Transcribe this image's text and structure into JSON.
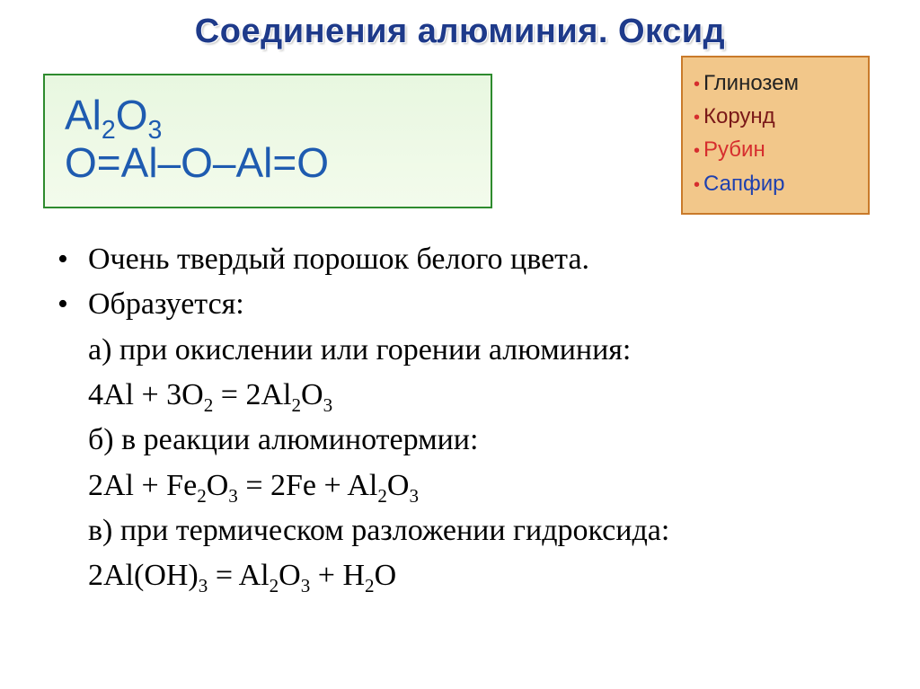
{
  "title": "Соединения алюминия. Оксид",
  "formula": {
    "line1_html": "Al<sub>2</sub>O<sub>3</sub>",
    "line2": "O=Al–O–Al=O",
    "box_bg_top": "#e8f7e0",
    "box_bg_bottom": "#f3fbec",
    "box_border": "#2e8b2e",
    "text_color": "#1e5bb0",
    "fontsize": 46
  },
  "minerals": {
    "box_bg": "#f2c78a",
    "box_border": "#c97a2a",
    "bullet_color": "#d62e2e",
    "fontsize": 24,
    "items": [
      {
        "label": "Глинозем",
        "color": "#222222"
      },
      {
        "label": "Корунд",
        "color": "#7a1818"
      },
      {
        "label": "Рубин",
        "color": "#d62e2e"
      },
      {
        "label": "Сапфир",
        "color": "#1e40af"
      }
    ]
  },
  "body": {
    "fontsize": 34,
    "text_color": "#000000",
    "line_height": 1.48,
    "bullets": [
      "Очень твердый порошок белого цвета.",
      "Образуется:"
    ],
    "sections": [
      {
        "label": "а) при окислении или горении алюминия:",
        "equation_html": "4Al + 3O<sub>2</sub> = 2Al<sub>2</sub>O<sub>3</sub>"
      },
      {
        "label": "б) в реакции алюминотермии:",
        "equation_html": "2Al + Fe<sub>2</sub>O<sub>3</sub> = 2Fe + Al<sub>2</sub>O<sub>3</sub>"
      },
      {
        "label": "в) при термическом разложении гидроксида:",
        "equation_html": "2Al(OH)<sub>3</sub> = Al<sub>2</sub>O<sub>3</sub> + H<sub>2</sub>O"
      }
    ]
  },
  "title_style": {
    "color": "#1e3a8a",
    "fontsize": 38,
    "font_family": "Arial"
  }
}
